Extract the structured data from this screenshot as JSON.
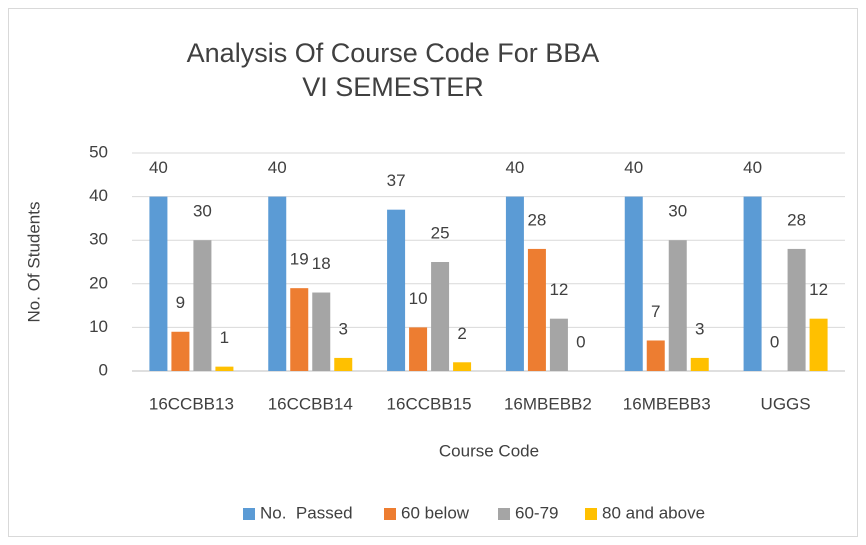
{
  "chart_data": {
    "type": "bar",
    "title": "Analysis Of Course Code For BBA VI SEMESTER",
    "x_label": "Course Code",
    "y_label": "No. Of Students",
    "categories": [
      "16CCBB13",
      "16CCBB14",
      "16CCBB15",
      "16MBEBB2",
      "16MBEBB3",
      "UGGS"
    ],
    "series": [
      {
        "name": "No.  Passed",
        "color": "#5b9bd5",
        "values": [
          40,
          40,
          37,
          40,
          40,
          40
        ]
      },
      {
        "name": "60 below",
        "color": "#ed7d31",
        "values": [
          9,
          19,
          10,
          28,
          7,
          0
        ]
      },
      {
        "name": "60-79",
        "color": "#a5a5a5",
        "values": [
          30,
          18,
          25,
          12,
          30,
          28
        ]
      },
      {
        "name": "80 and above",
        "color": "#ffc000",
        "values": [
          1,
          3,
          2,
          0,
          3,
          12
        ]
      }
    ],
    "ylim": [
      0,
      50
    ],
    "yticks": [
      0,
      10,
      20,
      30,
      40,
      50
    ],
    "grid": true,
    "legend": "bottom"
  }
}
